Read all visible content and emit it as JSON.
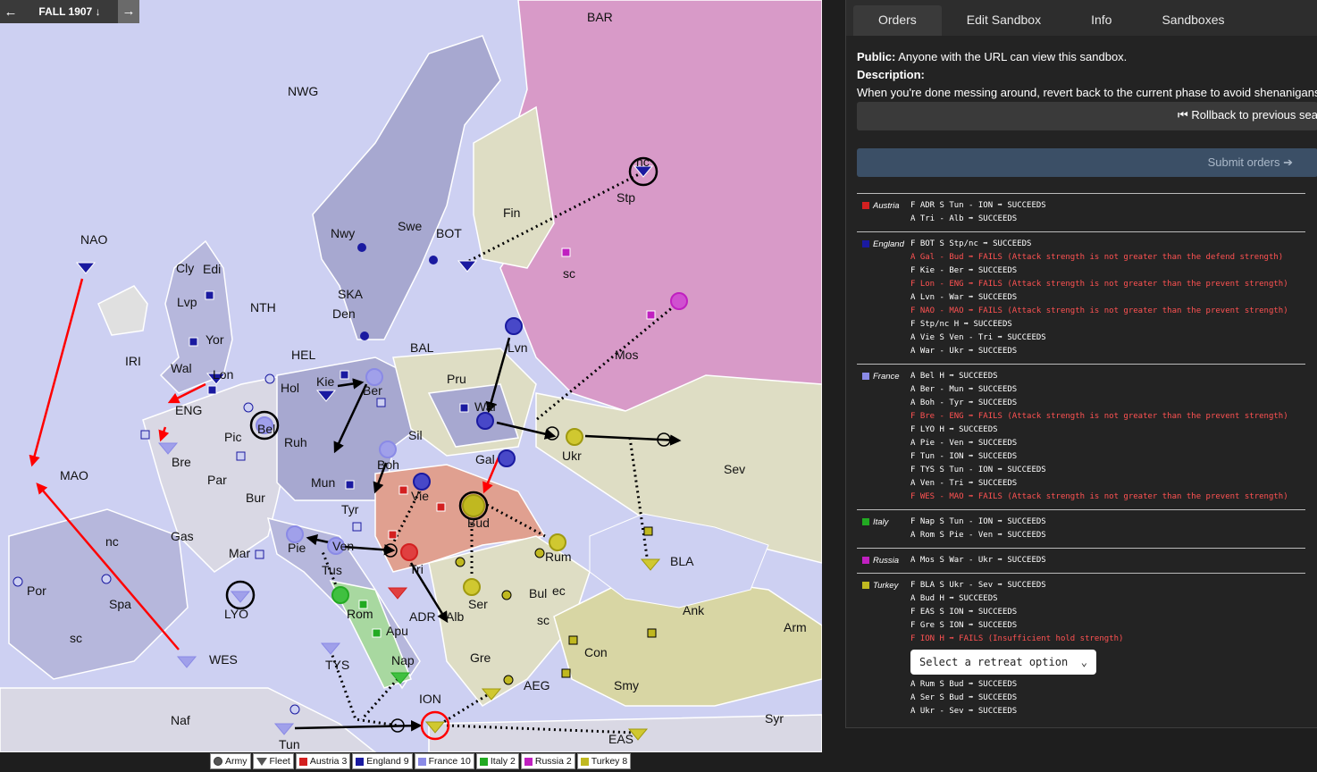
{
  "topbar": {
    "prev": "←",
    "phase": "FALL 1907 ↓",
    "next": "→"
  },
  "map_labels": {
    "BAR": "BAR",
    "NWG": "NWG",
    "NAO": "NAO",
    "Cly": "Cly",
    "Edi": "Edi",
    "Lvp": "Lvp",
    "Yor": "Yor",
    "Wal": "Wal",
    "Lon": "Lon",
    "IRI": "IRI",
    "ENG": "ENG",
    "NTH": "NTH",
    "Nwy": "Nwy",
    "Swe": "Swe",
    "BOT": "BOT",
    "Fin": "Fin",
    "Stp": "Stp",
    "nc": "nc",
    "sc": "sc",
    "SKA": "SKA",
    "Den": "Den",
    "HEL": "HEL",
    "BAL": "BAL",
    "Kie": "Kie",
    "Ber": "Ber",
    "Pru": "Pru",
    "Lvn": "Lvn",
    "Mos": "Mos",
    "Hol": "Hol",
    "Bel": "Bel",
    "Pic": "Pic",
    "Bre": "Bre",
    "Ruh": "Ruh",
    "Sil": "Sil",
    "War": "War",
    "Ukr": "Ukr",
    "Sev": "Sev",
    "MAO": "MAO",
    "Par": "Par",
    "Mun": "Mun",
    "Boh": "Boh",
    "Gal": "Gal",
    "Vie": "Vie",
    "Bud": "Bud",
    "Bur": "Bur",
    "Tyr": "Tyr",
    "Gas": "Gas",
    "Mar": "Mar",
    "Pie": "Pie",
    "Ven": "Ven",
    "Tri": "Tri",
    "Rum": "Rum",
    "BLA": "BLA",
    "Spa": "Spa",
    "Por": "Por",
    "LYO": "LYO",
    "Tus": "Tus",
    "Rom": "Rom",
    "Apu": "Apu",
    "ADR": "ADR",
    "Alb": "Alb",
    "Ser": "Ser",
    "Bul": "Bul",
    "ec": "ec",
    "Ank": "Ank",
    "Arm": "Arm",
    "Con": "Con",
    "Smy": "Smy",
    "Gre": "Gre",
    "AEG": "AEG",
    "WES": "WES",
    "TYS": "TYS",
    "Nap": "Nap",
    "ION": "ION",
    "EAS": "EAS",
    "Naf": "Naf",
    "Tun": "Tun",
    "Syr": "Syr"
  },
  "legend": [
    {
      "label": "Army",
      "color": "#555555"
    },
    {
      "label": "Fleet",
      "color": "#555555"
    },
    {
      "label": "Austria 3",
      "color": "#d32020"
    },
    {
      "label": "England 9",
      "color": "#1a1aa0"
    },
    {
      "label": "France 10",
      "color": "#8a8ae6"
    },
    {
      "label": "Italy 2",
      "color": "#22aa22"
    },
    {
      "label": "Russia 2",
      "color": "#c020c0"
    },
    {
      "label": "Turkey 8",
      "color": "#c0b820"
    }
  ],
  "tabs": [
    "Orders",
    "Edit Sandbox",
    "Info",
    "Sandboxes"
  ],
  "info": {
    "public_label": "Public:",
    "public_text": "Anyone with the URL can view this sandbox.",
    "description_label": "Description:",
    "description_text": "When you're done messing around, revert back to the current phase to avoid shenanigans"
  },
  "rollback_label": "⏮ Rollback to previous sea",
  "submit_label": "Submit orders ➔",
  "retreat_placeholder": "Select a retreat option",
  "nations": [
    {
      "name": "Austria",
      "color": "#d32020",
      "orders": [
        {
          "text": "F ADR S Tun - ION ➡ SUCCEEDS",
          "fail": false
        },
        {
          "text": "A Tri - Alb ➡ SUCCEEDS",
          "fail": false
        }
      ]
    },
    {
      "name": "England",
      "color": "#1a1aa0",
      "orders": [
        {
          "text": "F BOT S Stp/nc ➡ SUCCEEDS",
          "fail": false
        },
        {
          "text": "A Gal - Bud ➡ FAILS (Attack strength is not greater than the defend strength)",
          "fail": true
        },
        {
          "text": "F Kie - Ber ➡ SUCCEEDS",
          "fail": false
        },
        {
          "text": "F Lon - ENG ➡ FAILS (Attack strength is not greater than the prevent strength)",
          "fail": true
        },
        {
          "text": "A Lvn - War ➡ SUCCEEDS",
          "fail": false
        },
        {
          "text": "F NAO - MAO ➡ FAILS (Attack strength is not greater than the prevent strength)",
          "fail": true
        },
        {
          "text": "F Stp/nc H ➡ SUCCEEDS",
          "fail": false
        },
        {
          "text": "A Vie S Ven - Tri ➡ SUCCEEDS",
          "fail": false
        },
        {
          "text": "A War - Ukr ➡ SUCCEEDS",
          "fail": false
        }
      ]
    },
    {
      "name": "France",
      "color": "#8a8ae6",
      "orders": [
        {
          "text": "A Bel H ➡ SUCCEEDS",
          "fail": false
        },
        {
          "text": "A Ber - Mun ➡ SUCCEEDS",
          "fail": false
        },
        {
          "text": "A Boh - Tyr ➡ SUCCEEDS",
          "fail": false
        },
        {
          "text": "F Bre - ENG ➡ FAILS (Attack strength is not greater than the prevent strength)",
          "fail": true
        },
        {
          "text": "F LYO H ➡ SUCCEEDS",
          "fail": false
        },
        {
          "text": "A Pie - Ven ➡ SUCCEEDS",
          "fail": false
        },
        {
          "text": "F Tun - ION ➡ SUCCEEDS",
          "fail": false
        },
        {
          "text": "F TYS S Tun - ION ➡ SUCCEEDS",
          "fail": false
        },
        {
          "text": "A Ven - Tri ➡ SUCCEEDS",
          "fail": false
        },
        {
          "text": "F WES - MAO ➡ FAILS (Attack strength is not greater than the prevent strength)",
          "fail": true
        }
      ]
    },
    {
      "name": "Italy",
      "color": "#22aa22",
      "orders": [
        {
          "text": "F Nap S Tun - ION ➡ SUCCEEDS",
          "fail": false
        },
        {
          "text": "A Rom S Pie - Ven ➡ SUCCEEDS",
          "fail": false
        }
      ]
    },
    {
      "name": "Russia",
      "color": "#c020c0",
      "orders": [
        {
          "text": "A Mos S War - Ukr ➡ SUCCEEDS",
          "fail": false
        }
      ]
    },
    {
      "name": "Turkey",
      "color": "#c0b820",
      "orders": [
        {
          "text": "F BLA S Ukr - Sev ➡ SUCCEEDS",
          "fail": false
        },
        {
          "text": "A Bud H ➡ SUCCEEDS",
          "fail": false
        },
        {
          "text": "F EAS S ION ➡ SUCCEEDS",
          "fail": false
        },
        {
          "text": "F Gre S ION ➡ SUCCEEDS",
          "fail": false
        },
        {
          "text": "F ION H ➡ FAILS (Insufficient hold strength)",
          "fail": true,
          "retreat": true
        },
        {
          "text": "A Rum S Bud ➡ SUCCEEDS",
          "fail": false
        },
        {
          "text": "A Ser S Bud ➡ SUCCEEDS",
          "fail": false
        },
        {
          "text": "A Ukr - Sev ➡ SUCCEEDS",
          "fail": false
        }
      ]
    }
  ]
}
